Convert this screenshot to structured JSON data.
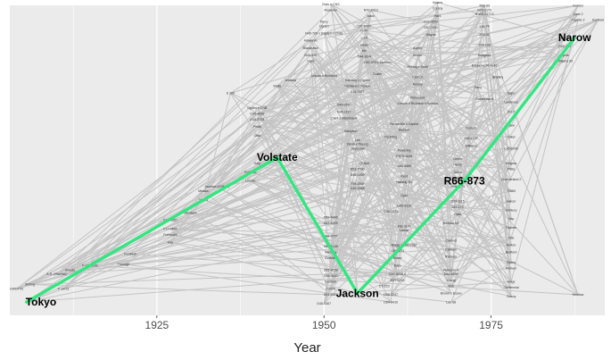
{
  "chart_data": {
    "type": "line",
    "title": "",
    "xlabel": "Year",
    "ylabel": "",
    "xlim": [
      1903,
      1992
    ],
    "ylim": [
      0,
      100
    ],
    "xticks": [
      1925,
      1950,
      1975
    ],
    "grid": true,
    "colors": {
      "panel": "#ebebeb",
      "grid": "#ffffff",
      "network": "#c4c4c4",
      "highlight": "#33e680"
    },
    "highlight_path": {
      "points": [
        {
          "name": "Tokyo",
          "x": 1905.5,
          "y": 1.5
        },
        {
          "name": "Volstate",
          "x": 1943,
          "y": 51
        },
        {
          "name": "Jackson",
          "x": 1955,
          "y": 4.5
        },
        {
          "name": "R66-873",
          "x": 1971,
          "y": 43
        },
        {
          "name": "Narow",
          "x": 1987.5,
          "y": 92
        }
      ]
    },
    "nodes": [
      {
        "name": "A.R. (Morrow)",
        "x": 1910,
        "y": 11
      },
      {
        "name": "Arkady",
        "x": 1912,
        "y": 12.5
      },
      {
        "name": "Stirling",
        "x": 1906,
        "y": 7.5
      },
      {
        "name": "GWDT09",
        "x": 1904,
        "y": 6
      },
      {
        "name": "P-10/13",
        "x": 1911,
        "y": 6
      },
      {
        "name": "P-11-08-02",
        "x": 1915,
        "y": 14
      },
      {
        "name": "Dunbeld",
        "x": 1921,
        "y": 18
      },
      {
        "name": "Fitzhugh",
        "x": 1920,
        "y": 14.5
      },
      {
        "name": "Hay",
        "x": 1927,
        "y": 22
      },
      {
        "name": "Pothouthl",
        "x": 1927,
        "y": 24.5
      },
      {
        "name": "F17-0452",
        "x": 1927,
        "y": 26.5
      },
      {
        "name": "F17-0620",
        "x": 1927,
        "y": 29.5
      },
      {
        "name": "Mandara",
        "x": 1930,
        "y": 32
      },
      {
        "name": "Ma-71",
        "x": 1932,
        "y": 36.5
      },
      {
        "name": "Mission",
        "x": 1932,
        "y": 39.5
      },
      {
        "name": "Ascelian (Gifford)",
        "x": 1934,
        "y": 41
      },
      {
        "name": "Lincoln",
        "x": 1939,
        "y": 43
      },
      {
        "name": "Ruffnest",
        "x": 1939,
        "y": 46
      },
      {
        "name": "Amy",
        "x": 1940,
        "y": 49
      },
      {
        "name": "Ohio",
        "x": 1940,
        "y": 58.5
      },
      {
        "name": "Pilots",
        "x": 1940,
        "y": 61.5
      },
      {
        "name": "O45-2719",
        "x": 1940,
        "y": 64
      },
      {
        "name": "O45-4890",
        "x": 1940,
        "y": 66
      },
      {
        "name": "Ogden x CNB",
        "x": 1940,
        "y": 68
      },
      {
        "name": "S 100",
        "x": 1936,
        "y": 73
      },
      {
        "name": "Wells",
        "x": 1943,
        "y": 75.5
      },
      {
        "name": "Artemia",
        "x": 1945,
        "y": 77.5
      },
      {
        "name": "Lincoln x Richland",
        "x": 1950,
        "y": 79
      },
      {
        "name": "Clark",
        "x": 1948,
        "y": 84
      },
      {
        "name": "N45-329",
        "x": 1948,
        "y": 86
      },
      {
        "name": "Blackhawk",
        "x": 1948,
        "y": 88.5
      },
      {
        "name": "Hawkeye",
        "x": 1948,
        "y": 91
      },
      {
        "name": "N45-709 x (Ogden x CNS)",
        "x": 1950,
        "y": 93.5
      },
      {
        "name": "Ogden",
        "x": 1950,
        "y": 96
      },
      {
        "name": "Perry",
        "x": 1950,
        "y": 97.5
      },
      {
        "name": "Roanoke",
        "x": 1951,
        "y": 101.5
      },
      {
        "name": "Clark x CNS",
        "x": 1951,
        "y": 103.5
      },
      {
        "name": "N70-2213",
        "x": 1957,
        "y": 101.5
      },
      {
        "name": "Mack",
        "x": 1957,
        "y": 99.5
      },
      {
        "name": "L57-0034",
        "x": 1956,
        "y": 96
      },
      {
        "name": "C-11",
        "x": 1956,
        "y": 94.5
      },
      {
        "name": "L-14",
        "x": 1956,
        "y": 92
      },
      {
        "name": "Head",
        "x": 1956,
        "y": 89.5
      },
      {
        "name": "Hill",
        "x": 1956,
        "y": 87.5
      },
      {
        "name": "O44-30-4",
        "x": 1956,
        "y": 85.5
      },
      {
        "name": "O45-330 x Jackson",
        "x": 1958,
        "y": 83.5
      },
      {
        "name": "Custer",
        "x": 1958,
        "y": 79.5
      },
      {
        "name": "Harosoy x Ogden",
        "x": 1955,
        "y": 77.5
      },
      {
        "name": "Richland x Ogden",
        "x": 1955,
        "y": 75.5
      },
      {
        "name": "D74-7477",
        "x": 1955,
        "y": 73.5
      },
      {
        "name": "D49-0565",
        "x": 1953,
        "y": 69
      },
      {
        "name": "N45-1117",
        "x": 1953,
        "y": 66.5
      },
      {
        "name": "Clark x Blackhawk",
        "x": 1953,
        "y": 64.5
      },
      {
        "name": "Hampton",
        "x": 1954,
        "y": 60
      },
      {
        "name": "Lee",
        "x": 1955,
        "y": 57
      },
      {
        "name": "Davis x Peking",
        "x": 1955,
        "y": 55.5
      },
      {
        "name": "Chippewa",
        "x": 1955,
        "y": 54
      },
      {
        "name": "CT-664",
        "x": 1956,
        "y": 49
      },
      {
        "name": "D53-7090",
        "x": 1955,
        "y": 47
      },
      {
        "name": "D48-0259",
        "x": 1955,
        "y": 45
      },
      {
        "name": "F59-1505",
        "x": 1955,
        "y": 42
      },
      {
        "name": "D49-2068",
        "x": 1955,
        "y": 40.5
      },
      {
        "name": "D59-6445",
        "x": 1951,
        "y": 30.5
      },
      {
        "name": "N59-1239",
        "x": 1951,
        "y": 28.5
      },
      {
        "name": "D44-2707",
        "x": 1951,
        "y": 24
      },
      {
        "name": "N45-1248",
        "x": 1951,
        "y": 20.5
      },
      {
        "name": "Harosoy",
        "x": 1951,
        "y": 18.5
      },
      {
        "name": "Duddles",
        "x": 1951,
        "y": 16.5
      },
      {
        "name": "D55-4159",
        "x": 1951,
        "y": 12.5
      },
      {
        "name": "D55-4110",
        "x": 1951,
        "y": 10.5
      },
      {
        "name": "Dorman",
        "x": 1951,
        "y": 8.5
      },
      {
        "name": "C1079",
        "x": 1951,
        "y": 6
      },
      {
        "name": "D51-2427",
        "x": 1951,
        "y": 4
      },
      {
        "name": "D45-2467",
        "x": 1950,
        "y": 1
      },
      {
        "name": "D64-8410",
        "x": 1960,
        "y": 1.5
      },
      {
        "name": "D58-3247",
        "x": 1960,
        "y": 4
      },
      {
        "name": "CT-Z23",
        "x": 1959,
        "y": 7
      },
      {
        "name": "D57-5215",
        "x": 1961,
        "y": 9
      },
      {
        "name": "D57-5215 x",
        "x": 1961,
        "y": 11
      },
      {
        "name": "Dare",
        "x": 1961,
        "y": 14
      },
      {
        "name": "Essex",
        "x": 1961,
        "y": 16.5
      },
      {
        "name": "L59-1871",
        "x": 1961,
        "y": 19
      },
      {
        "name": "Bragg x D60-7967",
        "x": 1962,
        "y": 21
      },
      {
        "name": "Lamar",
        "x": 1962,
        "y": 26
      },
      {
        "name": "F61-1106",
        "x": 1962,
        "y": 27.5
      },
      {
        "name": "D65-7075",
        "x": 1960,
        "y": 32.5
      },
      {
        "name": "D60-3110",
        "x": 1962,
        "y": 34.5
      },
      {
        "name": "Dyer",
        "x": 1962,
        "y": 38
      },
      {
        "name": "Hartwig B1",
        "x": 1962,
        "y": 42.5
      },
      {
        "name": "Kent",
        "x": 1962,
        "y": 44.5
      },
      {
        "name": "L46-4469",
        "x": 1962,
        "y": 48
      },
      {
        "name": "P876-1648",
        "x": 1962,
        "y": 51.5
      },
      {
        "name": "Pickering",
        "x": 1962,
        "y": 53.5
      },
      {
        "name": "Pershing",
        "x": 1960,
        "y": 58
      },
      {
        "name": "Beeson",
        "x": 1962,
        "y": 60.5
      },
      {
        "name": "Bonneville x Capital",
        "x": 1962,
        "y": 62.5
      },
      {
        "name": "Lincoln x Richland x Ronson",
        "x": 1964,
        "y": 69.5
      },
      {
        "name": "Richmond",
        "x": 1964,
        "y": 71.5
      },
      {
        "name": "Amsoy",
        "x": 1964,
        "y": 76
      },
      {
        "name": "Kanrich",
        "x": 1964,
        "y": 78.5
      },
      {
        "name": "Peking x Scott",
        "x": 1964,
        "y": 82
      },
      {
        "name": "Amcor",
        "x": 1964,
        "y": 86
      },
      {
        "name": "Ashiro",
        "x": 1964,
        "y": 88.5
      },
      {
        "name": "Wayne",
        "x": 1966,
        "y": 93
      },
      {
        "name": "D67-2001",
        "x": 1966,
        "y": 95.5
      },
      {
        "name": "D71-4553",
        "x": 1966,
        "y": 97.5
      },
      {
        "name": "Hark",
        "x": 1967,
        "y": 99.5
      },
      {
        "name": "Corsoy",
        "x": 1967,
        "y": 102
      },
      {
        "name": "Adams",
        "x": 1967,
        "y": 104
      },
      {
        "name": "TBS-69",
        "x": 1974,
        "y": 103
      },
      {
        "name": "N70-2173",
        "x": 1974,
        "y": 101.5
      },
      {
        "name": "N-WS-01772",
        "x": 1974,
        "y": 100
      },
      {
        "name": "Lee 74",
        "x": 1974,
        "y": 96
      },
      {
        "name": "Z74-01",
        "x": 1974,
        "y": 93
      },
      {
        "name": "Z74-105",
        "x": 1974,
        "y": 89.5
      },
      {
        "name": "Hodgson",
        "x": 1974,
        "y": 86
      },
      {
        "name": "Essex x L70-4142",
        "x": 1974,
        "y": 82.5
      },
      {
        "name": "Bradley",
        "x": 1976,
        "y": 78.5
      },
      {
        "name": "Tracy",
        "x": 1973,
        "y": 75
      },
      {
        "name": "Cumberland",
        "x": 1974,
        "y": 71
      },
      {
        "name": "Williams 82",
        "x": 1986,
        "y": 84
      },
      {
        "name": "Sprite",
        "x": 1986,
        "y": 86
      },
      {
        "name": "P70-273",
        "x": 1986,
        "y": 89
      },
      {
        "name": "Forrest",
        "x": 1972,
        "y": 61
      },
      {
        "name": "L66-L137",
        "x": 1972,
        "y": 57.5
      },
      {
        "name": "Williams",
        "x": 1972,
        "y": 55
      },
      {
        "name": "Union",
        "x": 1970,
        "y": 50.5
      },
      {
        "name": "Henry",
        "x": 1970,
        "y": 48.5
      },
      {
        "name": "Sohio",
        "x": 1970,
        "y": 46
      },
      {
        "name": "Franklin",
        "x": 1970,
        "y": 44
      },
      {
        "name": "Amsoy 71",
        "x": 1970,
        "y": 41
      },
      {
        "name": "D73-1115",
        "x": 1970,
        "y": 36
      },
      {
        "name": "L67-170",
        "x": 1970,
        "y": 34
      },
      {
        "name": "Oaks",
        "x": 1970,
        "y": 31.5
      },
      {
        "name": "Beeson 80",
        "x": 1969,
        "y": 28.5
      },
      {
        "name": "Calland",
        "x": 1969,
        "y": 22.5
      },
      {
        "name": "Calhoun",
        "x": 1969,
        "y": 19.5
      },
      {
        "name": "Ransom",
        "x": 1969,
        "y": 17
      },
      {
        "name": "Ransom II",
        "x": 1969,
        "y": 12.5
      },
      {
        "name": "D64-4635",
        "x": 1969,
        "y": 11
      },
      {
        "name": "Young",
        "x": 1969,
        "y": 9
      },
      {
        "name": "York",
        "x": 1969,
        "y": 7
      },
      {
        "name": "Brown x Essex",
        "x": 1969,
        "y": 4.5
      },
      {
        "name": "Lee 68",
        "x": 1969,
        "y": 1.5
      },
      {
        "name": "Gasoy",
        "x": 1978,
        "y": 3.5
      },
      {
        "name": "Centennial",
        "x": 1978,
        "y": 6.5
      },
      {
        "name": "Gage",
        "x": 1978,
        "y": 8.5
      },
      {
        "name": "Pioneer",
        "x": 1978,
        "y": 13
      },
      {
        "name": "Ripley",
        "x": 1978,
        "y": 15
      },
      {
        "name": "Bedford",
        "x": 1978,
        "y": 18.5
      },
      {
        "name": "Hutton",
        "x": 1978,
        "y": 21
      },
      {
        "name": "Toki",
        "x": 1978,
        "y": 23.5
      },
      {
        "name": "Fayette",
        "x": 1978,
        "y": 27
      },
      {
        "name": "Hap",
        "x": 1978,
        "y": 30
      },
      {
        "name": "Century",
        "x": 1978,
        "y": 33
      },
      {
        "name": "Harcor",
        "x": 1978,
        "y": 36
      },
      {
        "name": "T-B69",
        "x": 1978,
        "y": 39.5
      },
      {
        "name": "Cumberland 2",
        "x": 1978,
        "y": 43.5
      },
      {
        "name": "Pella",
        "x": 1978,
        "y": 47
      },
      {
        "name": "Kingwa",
        "x": 1978,
        "y": 49
      },
      {
        "name": "L75-6245",
        "x": 1978,
        "y": 54
      },
      {
        "name": "Coker",
        "x": 1978,
        "y": 58
      },
      {
        "name": "Zane",
        "x": 1978,
        "y": 62
      },
      {
        "name": "P-17",
        "x": 1978,
        "y": 66.5
      },
      {
        "name": "Lawrence",
        "x": 1978,
        "y": 70
      },
      {
        "name": "Elgin",
        "x": 1978,
        "y": 73
      },
      {
        "name": "Fayette 2",
        "x": 1988,
        "y": 98
      },
      {
        "name": "Zane 2",
        "x": 1988,
        "y": 100
      },
      {
        "name": "Gordon",
        "x": 1988,
        "y": 103
      },
      {
        "name": "Kenfield",
        "x": 1991,
        "y": 98
      },
      {
        "name": "Ebiason",
        "x": 1986,
        "y": 92
      },
      {
        "name": "Kentlow",
        "x": 1988,
        "y": 4
      }
    ]
  }
}
